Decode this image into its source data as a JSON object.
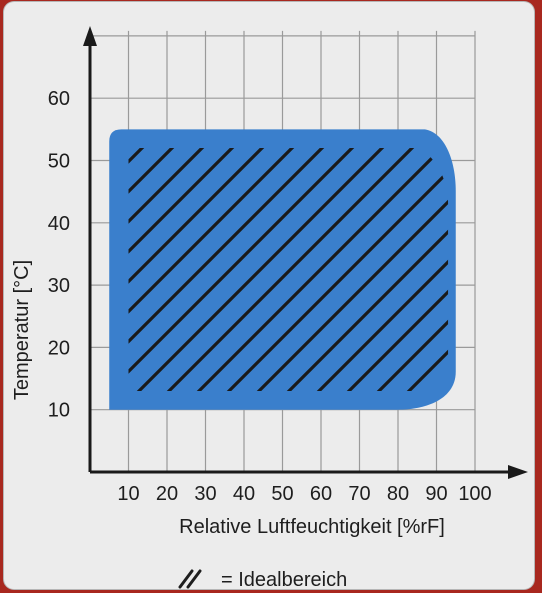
{
  "chart_data": {
    "type": "area",
    "xlabel": "Relative Luftfeuchtigkeit [%rF]",
    "ylabel": "Temperatur [°C]",
    "xlim": [
      0,
      100
    ],
    "ylim": [
      0,
      70
    ],
    "x_ticks": [
      10,
      20,
      30,
      40,
      50,
      60,
      70,
      80,
      90,
      100
    ],
    "y_ticks": [
      10,
      20,
      30,
      40,
      50,
      60
    ],
    "grid": true,
    "region_fill_color": "#3a7fcc",
    "region": {
      "x_min": 5,
      "x_max": 95,
      "y_min": 10,
      "y_max": 55,
      "outline": [
        [
          5,
          10
        ],
        [
          5,
          55
        ],
        [
          87,
          55
        ],
        [
          95,
          47
        ],
        [
          95,
          17
        ],
        [
          84,
          10
        ]
      ]
    },
    "ideal_region_x": [
      10,
      93
    ],
    "ideal_region_y": [
      13,
      52
    ],
    "legend": {
      "symbol": "//",
      "text": "= Idealbereich",
      "position": "bottom-center"
    }
  }
}
